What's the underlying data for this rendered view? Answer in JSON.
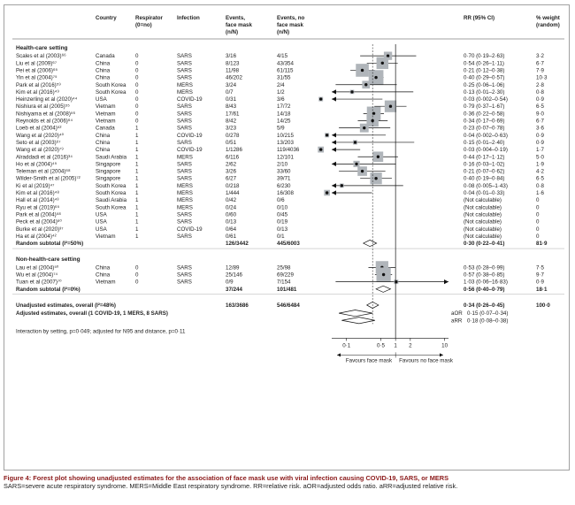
{
  "figure": {
    "caption_title": "Figure 4: Forest plot showing unadjusted estimates for the association of face mask use with viral infection causing COVID-19, SARS, or MERS",
    "caption_abbrev": "SARS=severe acute respiratory syndrome. MERS=Middle East respiratory syndrome. RR=relative risk. aOR=adjusted odds ratio. aRR=adjusted relative risk."
  },
  "headers": {
    "study": "",
    "country": "Country",
    "respirator": "Respirator (0=no)",
    "infection": "Infection",
    "events_mask": "Events, face mask (n/N)",
    "events_nomask": "Events, no face mask (n/N)",
    "rr": "RR (95% CI)",
    "weight": "% weight (random)"
  },
  "colors": {
    "box": "#b0b5ba",
    "line": "#111111",
    "border": "#8a8a8a",
    "caption_title": "#8b1a1a"
  },
  "chart_data": {
    "type": "forest",
    "x_scale": "log",
    "xlim": [
      0.05,
      12
    ],
    "x_ticks": [
      "0·1",
      "0·5",
      "1",
      "2",
      "10"
    ],
    "x_tick_values": [
      0.1,
      0.5,
      1,
      2,
      10
    ],
    "reference_line": 1,
    "favour_left": "Favours face mask",
    "favour_right": "Favours no face mask",
    "groups": [
      {
        "title": "Health-care setting",
        "studies": [
          {
            "study": "Scales et al (2003)⁶⁶",
            "country": "Canada",
            "respirator": "0",
            "infection": "SARS",
            "em": "3/16",
            "en": "4/15",
            "rr": 0.7,
            "lo": 0.19,
            "hi": 2.63,
            "text": "0·70 (0·19–2·63)",
            "weight": "3·2"
          },
          {
            "study": "Liu et al (2009)⁶⁷",
            "country": "China",
            "respirator": "0",
            "infection": "SARS",
            "em": "8/123",
            "en": "43/354",
            "rr": 0.54,
            "lo": 0.26,
            "hi": 1.11,
            "text": "0·54 (0·26–1·11)",
            "weight": "6·7"
          },
          {
            "study": "Pei et al (2006)⁶⁵",
            "country": "China",
            "respirator": "0",
            "infection": "SARS",
            "em": "11/98",
            "en": "61/115",
            "rr": 0.21,
            "lo": 0.12,
            "hi": 0.38,
            "text": "0·21 (0·12–0·38)",
            "weight": "7·9"
          },
          {
            "study": "Yin et al (2004)⁷⁵",
            "country": "China",
            "respirator": "0",
            "infection": "SARS",
            "em": "46/202",
            "en": "31/55",
            "rr": 0.4,
            "lo": 0.29,
            "hi": 0.57,
            "text": "0·40 (0·29–0·57)",
            "weight": "10·3"
          },
          {
            "study": "Park et al (2016)⁵⁹",
            "country": "South Korea",
            "respirator": "0",
            "infection": "MERS",
            "em": "3/24",
            "en": "2/4",
            "rr": 0.25,
            "lo": 0.06,
            "hi": 1.06,
            "text": "0·25 (0·06–1·06)",
            "weight": "2·8"
          },
          {
            "study": "Kim et al (2016)⁴⁹",
            "country": "South Korea",
            "respirator": "0",
            "infection": "MERS",
            "em": "0/7",
            "en": "1/2",
            "rr": 0.13,
            "lo": 0.01,
            "hi": 2.3,
            "text": "0·13 (0·01–2·30)",
            "weight": "0·8"
          },
          {
            "study": "Heinzerling et al (2020)⁴⁴",
            "country": "USA",
            "respirator": "0",
            "infection": "COVID-19",
            "em": "0/31",
            "en": "3/6",
            "rr": 0.03,
            "lo": 0.002,
            "hi": 0.54,
            "text": "0·03 (0·002–0·54)",
            "weight": "0·9"
          },
          {
            "study": "Nishiura et al (2005)⁵⁵",
            "country": "Vietnam",
            "respirator": "0",
            "infection": "SARS",
            "em": "8/43",
            "en": "17/72",
            "rr": 0.79,
            "lo": 0.37,
            "hi": 1.67,
            "text": "0·79 (0·37–1·67)",
            "weight": "6·5"
          },
          {
            "study": "Nishiyama et al (2008)⁵⁶",
            "country": "Vietnam",
            "respirator": "0",
            "infection": "SARS",
            "em": "17/61",
            "en": "14/18",
            "rr": 0.36,
            "lo": 0.22,
            "hi": 0.58,
            "text": "0·36 (0·22–0·58)",
            "weight": "9·0"
          },
          {
            "study": "Reynolds et al (2006)⁶⁴",
            "country": "Vietnam",
            "respirator": "0",
            "infection": "SARS",
            "em": "8/42",
            "en": "14/25",
            "rr": 0.34,
            "lo": 0.17,
            "hi": 0.69,
            "text": "0·34 (0·17–0·69)",
            "weight": "6·7"
          },
          {
            "study": "Loeb et al (2004)⁵²",
            "country": "Canada",
            "respirator": "1",
            "infection": "SARS",
            "em": "3/23",
            "en": "5/9",
            "rr": 0.23,
            "lo": 0.07,
            "hi": 0.78,
            "text": "0·23 (0·07–0·78)",
            "weight": "3·6"
          },
          {
            "study": "Wang et al (2020)⁴⁰",
            "country": "China",
            "respirator": "1",
            "infection": "COVID-19",
            "em": "0/278",
            "en": "10/215",
            "rr": 0.04,
            "lo": 0.002,
            "hi": 0.63,
            "text": "0·04 (0·002–0·63)",
            "weight": "0·9"
          },
          {
            "study": "Seto et al (2003)⁶⁷",
            "country": "China",
            "respirator": "1",
            "infection": "SARS",
            "em": "0/51",
            "en": "13/203",
            "rr": 0.15,
            "lo": 0.01,
            "hi": 2.4,
            "text": "0·15 (0·01–2·40)",
            "weight": "0·9"
          },
          {
            "study": "Wang et al (2020)⁷⁹",
            "country": "China",
            "respirator": "1",
            "infection": "COVID-19",
            "em": "1/1286",
            "en": "119/4036",
            "rr": 0.03,
            "lo": 0.004,
            "hi": 0.19,
            "text": "0·03 (0·004–0·19)",
            "weight": "1·7"
          },
          {
            "study": "Alraddadi et al (2016)³⁴",
            "country": "Saudi Arabia",
            "respirator": "1",
            "infection": "MERS",
            "em": "6/116",
            "en": "12/101",
            "rr": 0.44,
            "lo": 0.17,
            "hi": 1.12,
            "text": "0·44 (0·17–1·12)",
            "weight": "5·0"
          },
          {
            "study": "Ho et al (2004)⁴⁵",
            "country": "Singapore",
            "respirator": "1",
            "infection": "SARS",
            "em": "2/62",
            "en": "2/10",
            "rr": 0.16,
            "lo": 0.03,
            "hi": 1.02,
            "text": "0·16 (0·03–1·02)",
            "weight": "1·9"
          },
          {
            "study": "Teleman et al (2004)⁶⁸",
            "country": "Singapore",
            "respirator": "1",
            "infection": "SARS",
            "em": "3/26",
            "en": "33/60",
            "rr": 0.21,
            "lo": 0.07,
            "hi": 0.62,
            "text": "0·21 (0·07–0·62)",
            "weight": "4·2"
          },
          {
            "study": "Wilder-Smith et al (2005)⁷²",
            "country": "Singapore",
            "respirator": "1",
            "infection": "SARS",
            "em": "6/27",
            "en": "39/71",
            "rr": 0.4,
            "lo": 0.19,
            "hi": 0.84,
            "text": "0·40 (0·19–0·84)",
            "weight": "6·5"
          },
          {
            "study": "Ki et al (2019)⁴⁷",
            "country": "South Korea",
            "respirator": "1",
            "infection": "MERS",
            "em": "0/218",
            "en": "6/230",
            "rr": 0.08,
            "lo": 0.005,
            "hi": 1.43,
            "text": "0·08 (0·005–1·43)",
            "weight": "0·8"
          },
          {
            "study": "Kim et al (2016)⁴⁸",
            "country": "South Korea",
            "respirator": "1",
            "infection": "MERS",
            "em": "1/444",
            "en": "16/308",
            "rr": 0.04,
            "lo": 0.01,
            "hi": 0.33,
            "text": "0·04 (0·01–0·33)",
            "weight": "1·6"
          },
          {
            "study": "Hall et al (2014)⁴³",
            "country": "Saudi Arabia",
            "respirator": "1",
            "infection": "MERS",
            "em": "0/42",
            "en": "0/6",
            "rr": null,
            "lo": null,
            "hi": null,
            "text": "(Not calculable)",
            "weight": "0"
          },
          {
            "study": "Ryu et al (2019)⁶⁵",
            "country": "South Korea",
            "respirator": "1",
            "infection": "MERS",
            "em": "0/24",
            "en": "0/10",
            "rr": null,
            "lo": null,
            "hi": null,
            "text": "(Not calculable)",
            "weight": "0"
          },
          {
            "study": "Park et al (2004)⁵⁸",
            "country": "USA",
            "respirator": "1",
            "infection": "SARS",
            "em": "0/60",
            "en": "0/45",
            "rr": null,
            "lo": null,
            "hi": null,
            "text": "(Not calculable)",
            "weight": "0"
          },
          {
            "study": "Peck et al (2004)⁶⁰",
            "country": "USA",
            "respirator": "1",
            "infection": "SARS",
            "em": "0/13",
            "en": "0/19",
            "rr": null,
            "lo": null,
            "hi": null,
            "text": "(Not calculable)",
            "weight": "0"
          },
          {
            "study": "Burke et al (2020)³⁷",
            "country": "USA",
            "respirator": "1",
            "infection": "COVID-19",
            "em": "0/64",
            "en": "0/13",
            "rr": null,
            "lo": null,
            "hi": null,
            "text": "(Not calculable)",
            "weight": "0"
          },
          {
            "study": "Ha et al (2004)⁴²",
            "country": "Vietnam",
            "respirator": "1",
            "infection": "SARS",
            "em": "0/61",
            "en": "0/1",
            "rr": null,
            "lo": null,
            "hi": null,
            "text": "(Not calculable)",
            "weight": "0"
          }
        ],
        "subtotal": {
          "label": "Random subtotal (I²=50%)",
          "em": "126/3442",
          "en": "445/6003",
          "rr": 0.3,
          "lo": 0.22,
          "hi": 0.41,
          "text": "0·30 (0·22–0·41)",
          "weight": "81·9"
        }
      },
      {
        "title": "Non-health-care setting",
        "studies": [
          {
            "study": "Lau et al (2004)⁵⁰",
            "country": "China",
            "respirator": "0",
            "infection": "SARS",
            "em": "12/89",
            "en": "25/98",
            "rr": 0.53,
            "lo": 0.28,
            "hi": 0.99,
            "text": "0·53 (0·28–0·99)",
            "weight": "7·5"
          },
          {
            "study": "Wu et al (2004)⁷⁴",
            "country": "China",
            "respirator": "0",
            "infection": "SARS",
            "em": "25/146",
            "en": "69/229",
            "rr": 0.57,
            "lo": 0.38,
            "hi": 0.85,
            "text": "0·57 (0·38–0·85)",
            "weight": "9·7"
          },
          {
            "study": "Tuan et al (2007)⁷⁰",
            "country": "Vietnam",
            "respirator": "0",
            "infection": "SARS",
            "em": "0/9",
            "en": "7/154",
            "rr": 1.03,
            "lo": 0.06,
            "hi": 16.83,
            "text": "1·03 (0·06–16·83)",
            "weight": "0·9"
          }
        ],
        "subtotal": {
          "label": "Random subtotal (I²=0%)",
          "em": "37/244",
          "en": "101/481",
          "rr": 0.56,
          "lo": 0.4,
          "hi": 0.79,
          "text": "0·56 (0·40–0·79)",
          "weight": "18·1"
        }
      }
    ],
    "overall": {
      "label": "Unadjusted estimates, overall (I²=48%)",
      "em": "163/3686",
      "en": "546/6484",
      "rr": 0.34,
      "lo": 0.26,
      "hi": 0.45,
      "text": "0·34 (0·26–0·45)",
      "weight": "100·0"
    },
    "adjusted": {
      "label": "Adjusted estimates, overall (1 COVID-19, 1 MERS, 8 SARS)",
      "aor": {
        "label": "aOR",
        "rr": 0.15,
        "lo": 0.07,
        "hi": 0.34,
        "text": "0·15 (0·07–0·34)"
      },
      "arr": {
        "label": "aRR",
        "rr": 0.18,
        "lo": 0.08,
        "hi": 0.38,
        "text": "0·18 (0·08–0·38)"
      }
    },
    "interaction_note": "Interaction by setting, p=0·049; adjusted for N95 and distance, p=0·11"
  }
}
